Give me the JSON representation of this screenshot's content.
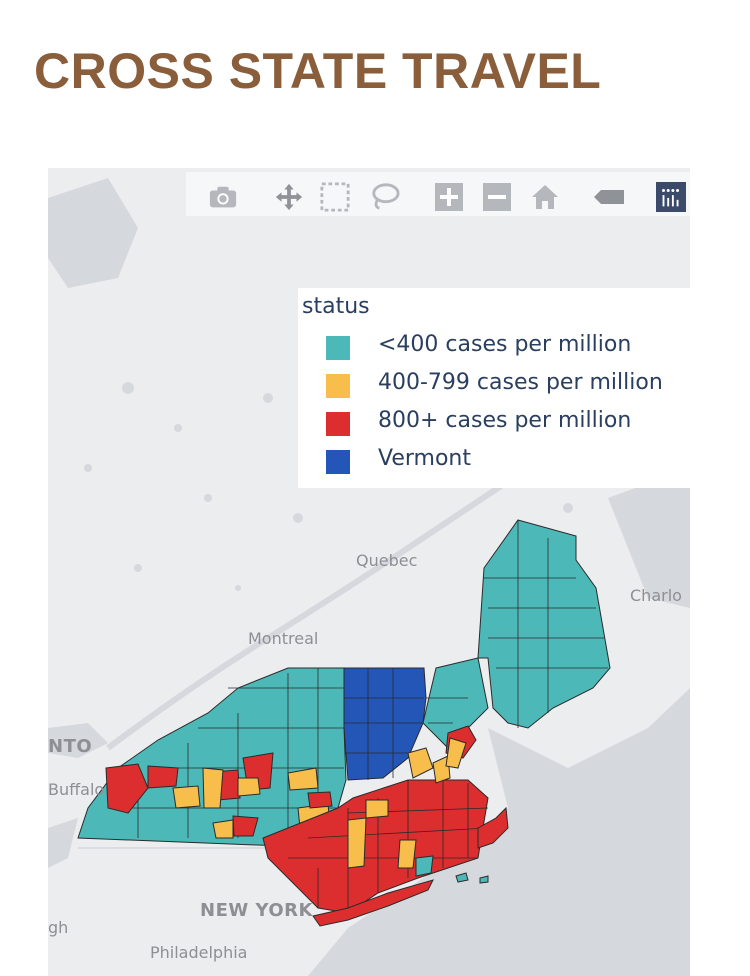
{
  "page": {
    "title": "CROSS STATE TRAVEL"
  },
  "modebar": {
    "buttons": [
      {
        "icon": "camera-icon"
      },
      {
        "icon": "pan-icon"
      },
      {
        "icon": "box-select-icon"
      },
      {
        "icon": "lasso-select-icon"
      },
      {
        "icon": "zoom-in-icon"
      },
      {
        "icon": "zoom-out-icon"
      },
      {
        "icon": "home-icon"
      },
      {
        "icon": "hover-tag-icon"
      },
      {
        "icon": "plotly-logo-icon"
      }
    ]
  },
  "legend": {
    "title": "status",
    "items": [
      {
        "label": "<400 cases per million",
        "color": "#4db8b8"
      },
      {
        "label": "400-799 cases per million",
        "color": "#f7be4b"
      },
      {
        "label": "800+ cases per million",
        "color": "#dc2e2e"
      },
      {
        "label": "Vermont",
        "color": "#2456b8"
      }
    ]
  },
  "map": {
    "places": {
      "quebec": "Quebec",
      "montreal": "Montreal",
      "toronto": "NTO",
      "buffalo": "Buffalo",
      "charlo": "Charlo",
      "new_york": "NEW YORK",
      "philadelphia": "Philadelphia",
      "gh": "gh"
    }
  }
}
